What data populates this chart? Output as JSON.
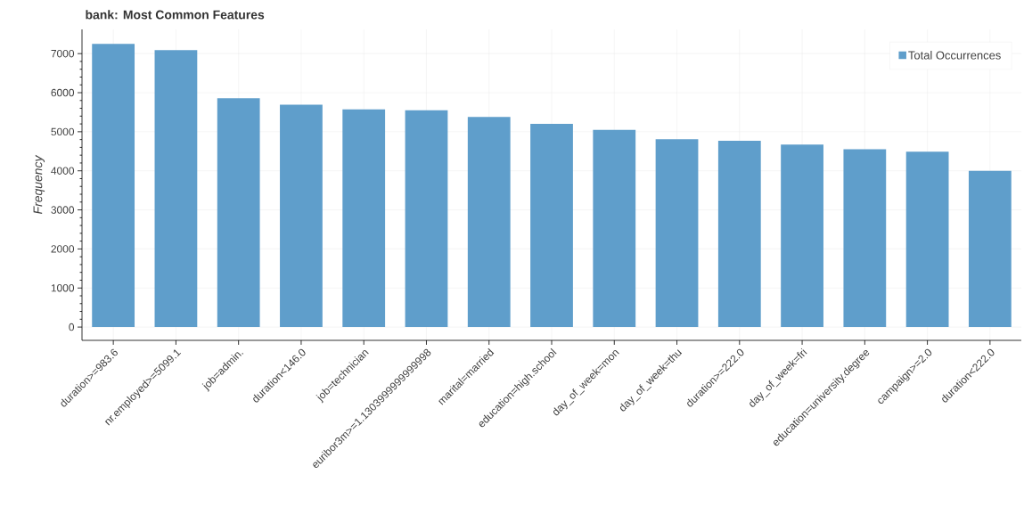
{
  "chart_data": {
    "type": "bar",
    "title": "bank: Most Common Features",
    "ylabel": "Frequency",
    "categories": [
      "duration>=983.6",
      "nr.employed>=5099.1",
      "job=admin.",
      "duration<146.0",
      "job=technician",
      "euribor3m>=1.1303999999999998",
      "marital=married",
      "education=high.school",
      "day_of_week=mon",
      "day_of_week=thu",
      "duration>=222.0",
      "day_of_week=fri",
      "education=university.degree",
      "campaign>=2.0",
      "duration<222.0"
    ],
    "series": [
      {
        "name": "Total Occurrences",
        "color": "#5f9ecb",
        "values": [
          7250,
          7090,
          5860,
          5690,
          5570,
          5550,
          5380,
          5200,
          5050,
          4810,
          4770,
          4670,
          4550,
          4490,
          4000
        ]
      }
    ],
    "ylim": [
      -340,
      7620
    ],
    "yticks": [
      0,
      1000,
      2000,
      3000,
      4000,
      5000,
      6000,
      7000
    ],
    "grid": true,
    "legend": "top right"
  }
}
